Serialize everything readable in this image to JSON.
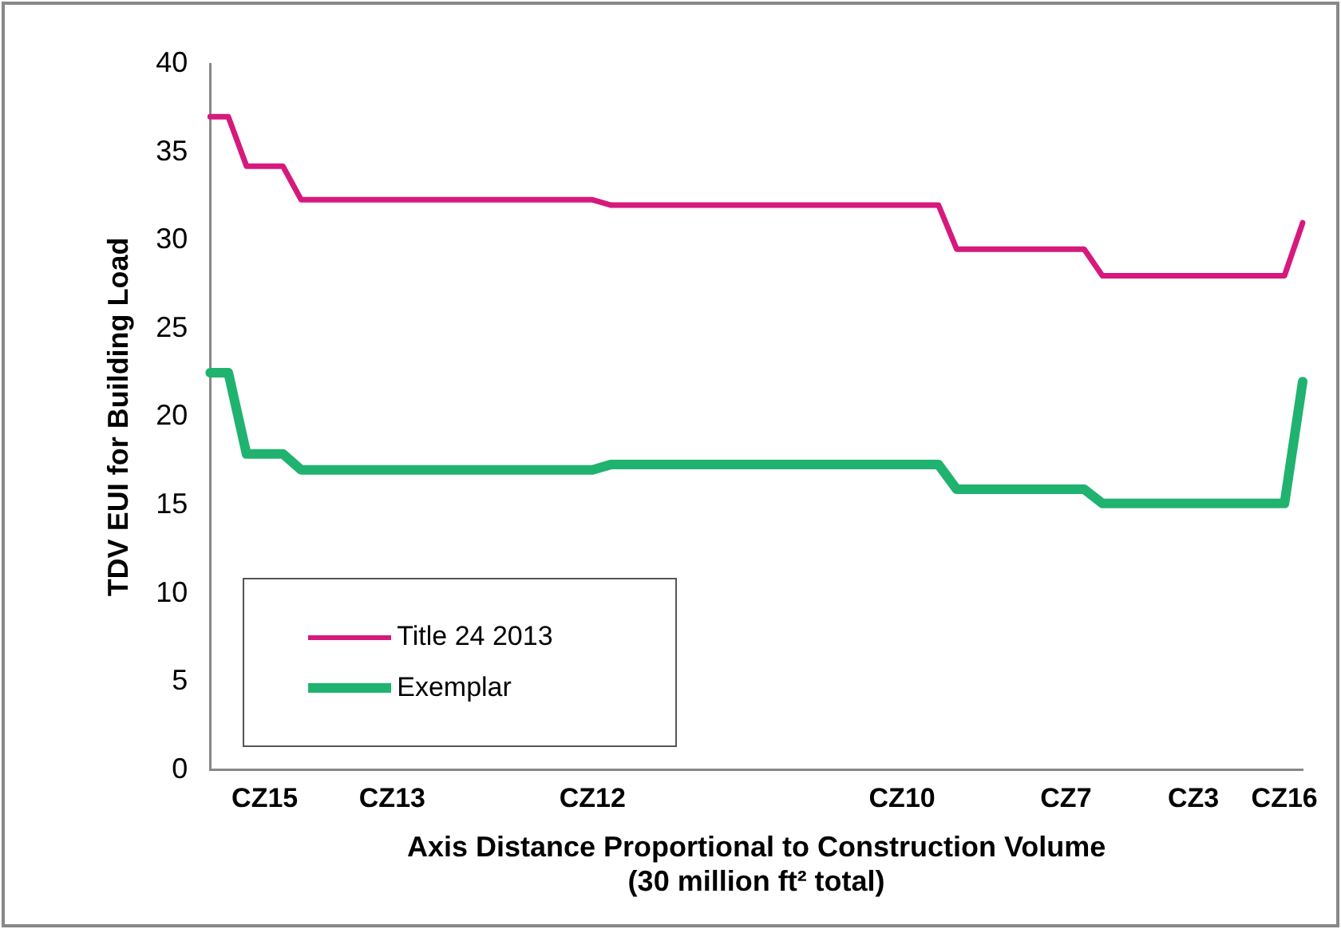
{
  "chart_data": {
    "type": "line",
    "xlabel": "Axis Distance Proportional to Construction Volume\n(30 million ft² total)",
    "ylabel": "TDV EUI for Building Load",
    "categories": [
      null,
      null,
      null,
      "CZ15",
      null,
      null,
      null,
      null,
      null,
      null,
      "CZ13",
      null,
      null,
      null,
      null,
      null,
      null,
      null,
      null,
      null,
      null,
      "CZ12",
      null,
      null,
      null,
      null,
      null,
      null,
      null,
      null,
      null,
      null,
      null,
      null,
      null,
      null,
      null,
      null,
      "CZ10",
      null,
      null,
      null,
      null,
      null,
      null,
      null,
      null,
      "CZ7",
      null,
      null,
      null,
      null,
      null,
      null,
      "CZ3",
      null,
      null,
      null,
      null,
      "CZ16",
      null
    ],
    "series": [
      {
        "name": "Title 24 2013",
        "color": "#d6197c",
        "values": [
          37,
          37,
          34.2,
          34.2,
          34.2,
          32.3,
          32.3,
          32.3,
          32.3,
          32.3,
          32.3,
          32.3,
          32.3,
          32.3,
          32.3,
          32.3,
          32.3,
          32.3,
          32.3,
          32.3,
          32.3,
          32.3,
          32,
          32,
          32,
          32,
          32,
          32,
          32,
          32,
          32,
          32,
          32,
          32,
          32,
          32,
          32,
          32,
          32,
          32,
          32,
          29.5,
          29.5,
          29.5,
          29.5,
          29.5,
          29.5,
          29.5,
          29.5,
          28,
          28,
          28,
          28,
          28,
          28,
          28,
          28,
          28,
          28,
          28,
          31
        ]
      },
      {
        "name": "Exemplar",
        "color": "#1fb36f",
        "values": [
          22.5,
          22.5,
          17.9,
          17.9,
          17.9,
          17,
          17,
          17,
          17,
          17,
          17,
          17,
          17,
          17,
          17,
          17,
          17,
          17,
          17,
          17,
          17,
          17,
          17.3,
          17.3,
          17.3,
          17.3,
          17.3,
          17.3,
          17.3,
          17.3,
          17.3,
          17.3,
          17.3,
          17.3,
          17.3,
          17.3,
          17.3,
          17.3,
          17.3,
          17.3,
          17.3,
          15.9,
          15.9,
          15.9,
          15.9,
          15.9,
          15.9,
          15.9,
          15.9,
          15.1,
          15.1,
          15.1,
          15.1,
          15.1,
          15.1,
          15.1,
          15.1,
          15.1,
          15.1,
          15.1,
          22
        ]
      }
    ],
    "ylim": [
      0,
      40
    ],
    "yticks": [
      0,
      5,
      10,
      15,
      20,
      25,
      30,
      35,
      40
    ],
    "grid": false,
    "legend": "bottom left",
    "marker": "none",
    "line_style": "solid"
  }
}
